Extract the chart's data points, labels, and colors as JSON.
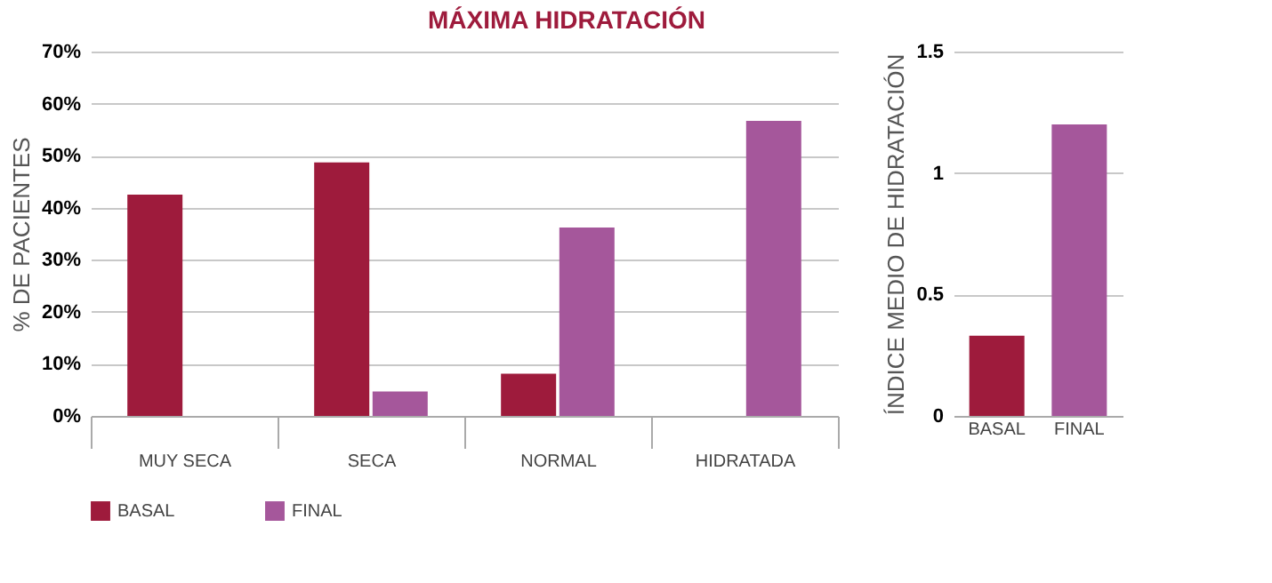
{
  "chart_data": [
    {
      "type": "bar",
      "title": "MÁXIMA HIDRATACIÓN",
      "ylabel": "% DE PACIENTES",
      "categories": [
        "MUY SECA",
        "SECA",
        "NORMAL",
        "HIDRATADA"
      ],
      "series": [
        {
          "name": "BASAL",
          "color": "#9e1b3c",
          "values": [
            42.5,
            48.7,
            8.1,
            null
          ]
        },
        {
          "name": "FINAL",
          "color": "#a5579b",
          "values": [
            null,
            4.7,
            36.2,
            56.7
          ]
        }
      ],
      "ylim": [
        0,
        70
      ],
      "yticks": [
        {
          "value": 0,
          "label": "0%"
        },
        {
          "value": 10,
          "label": "10%"
        },
        {
          "value": 20,
          "label": "20%"
        },
        {
          "value": 30,
          "label": "30%"
        },
        {
          "value": 40,
          "label": "40%"
        },
        {
          "value": 50,
          "label": "50%"
        },
        {
          "value": 60,
          "label": "60%"
        },
        {
          "value": 70,
          "label": "70%"
        }
      ],
      "grid": "y",
      "legend": "bottom"
    },
    {
      "type": "bar",
      "ylabel": "ÍNDICE MEDIO DE HIDRATACIÓN",
      "categories": [
        "BASAL",
        "FINAL"
      ],
      "values": [
        0.33,
        1.2
      ],
      "colors": [
        "#9e1b3c",
        "#a5579b"
      ],
      "ylim": [
        0,
        1.5
      ],
      "yticks": [
        0,
        0.5,
        1,
        1.5
      ],
      "grid": "y"
    }
  ]
}
